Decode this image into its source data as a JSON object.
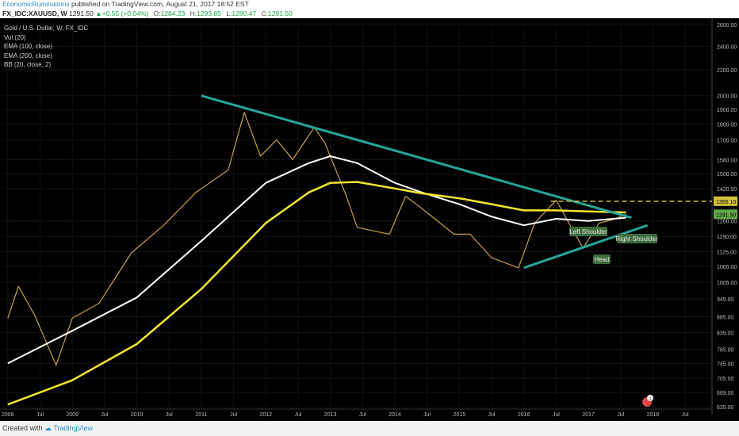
{
  "header": {
    "author": "EconomicRuminations",
    "published": " published on TradingView.com, August 21, 2017 18:52 EST"
  },
  "symbol_bar": {
    "symbol": "FX_IDC:XAUUSD, W",
    "price": "1291.50",
    "change": "▲+0.55 (+0.04%)",
    "open_label": "O:",
    "open": "1284.23",
    "high_label": "H:",
    "high": "1293.85",
    "low_label": "L:",
    "low": "1280.47",
    "close_label": "C:",
    "close": "1291.50"
  },
  "legend": {
    "title": "Gold / U.S. Dollar, W, FX_IDC",
    "items": [
      "Vol (20)",
      "EMA (100, close)",
      "EMA (200, close)",
      "BB (20, close, 2)"
    ]
  },
  "footer": {
    "created_with": "Created with",
    "brand": "TradingView"
  },
  "annotations": {
    "left_shoulder": "Left Shoulder",
    "right_shoulder": "Right Shoulder",
    "head": "Head"
  },
  "price_tags": {
    "level": "1355.10",
    "last": "1291.50"
  },
  "colors": {
    "background": "#000000",
    "trendline": "#26a69a",
    "ema100": "#ffffff",
    "ema200": "#f5e630",
    "tag_yellow": "#d4c33a",
    "tag_green": "#5fa84a"
  },
  "chart_data": {
    "type": "line",
    "title": "Gold / U.S. Dollar, W, FX_IDC",
    "scale": "log",
    "y_ticks": [
      "2600.00",
      "2400.00",
      "2200.00",
      "2000.00",
      "1900.00",
      "1800.00",
      "1700.00",
      "1580.00",
      "1500.00",
      "1420.00",
      "1355.10",
      "1291.50",
      "1260.00",
      "1190.00",
      "1125.00",
      "1065.00",
      "1005.00",
      "945.00",
      "885.00",
      "835.00",
      "785.00",
      "745.00",
      "705.00",
      "669.00",
      "635.00"
    ],
    "x_ticks": [
      "2008",
      "Jul",
      "2009",
      "Jul",
      "2010",
      "Jul",
      "2011",
      "Jul",
      "2012",
      "Jul",
      "2013",
      "Jul",
      "2014",
      "Jul",
      "2015",
      "Jul",
      "2016",
      "Jul",
      "2017",
      "Jul",
      "2018",
      "Jul"
    ],
    "ylim": [
      635,
      2600
    ],
    "xlim": [
      "2007-12",
      "2018-12"
    ],
    "series": [
      {
        "name": "XAUUSD",
        "x": [
          "2008-01",
          "2008-03",
          "2008-06",
          "2008-10",
          "2009-01",
          "2009-06",
          "2009-12",
          "2010-06",
          "2010-12",
          "2011-06",
          "2011-09",
          "2011-12",
          "2012-03",
          "2012-06",
          "2012-10",
          "2012-12",
          "2013-04",
          "2013-06",
          "2013-12",
          "2014-03",
          "2014-06",
          "2014-12",
          "2015-03",
          "2015-07",
          "2015-12",
          "2016-03",
          "2016-07",
          "2016-12",
          "2017-03",
          "2017-06",
          "2017-08"
        ],
        "y": [
          880,
          990,
          890,
          740,
          880,
          930,
          1120,
          1240,
          1400,
          1520,
          1880,
          1600,
          1700,
          1580,
          1780,
          1680,
          1380,
          1230,
          1200,
          1380,
          1320,
          1200,
          1200,
          1100,
          1060,
          1250,
          1360,
          1140,
          1250,
          1270,
          1291.5
        ]
      },
      {
        "name": "EMA (100, close)",
        "x": [
          "2008-01",
          "2009-01",
          "2010-01",
          "2011-01",
          "2012-01",
          "2012-09",
          "2013-01",
          "2013-06",
          "2014-01",
          "2014-06",
          "2015-01",
          "2015-07",
          "2016-01",
          "2016-07",
          "2017-01",
          "2017-08"
        ],
        "y": [
          745,
          840,
          950,
          1170,
          1450,
          1560,
          1600,
          1560,
          1450,
          1400,
          1340,
          1280,
          1240,
          1270,
          1260,
          1275
        ]
      },
      {
        "name": "EMA (200, close)",
        "x": [
          "2008-01",
          "2009-01",
          "2010-01",
          "2011-01",
          "2012-01",
          "2012-09",
          "2013-01",
          "2013-06",
          "2014-01",
          "2014-06",
          "2015-01",
          "2015-07",
          "2016-01",
          "2016-07",
          "2017-01",
          "2017-08"
        ],
        "y": [
          640,
          700,
          800,
          980,
          1250,
          1400,
          1450,
          1455,
          1420,
          1395,
          1370,
          1340,
          1310,
          1310,
          1305,
          1300
        ]
      }
    ],
    "trendlines": [
      {
        "name": "descending resistance",
        "x": [
          "2011-01",
          "2017-09"
        ],
        "y": [
          2000,
          1275
        ]
      },
      {
        "name": "ascending support",
        "x": [
          "2016-01",
          "2017-12"
        ],
        "y": [
          1060,
          1240
        ]
      },
      {
        "name": "resistance level",
        "x": [
          "2016-06",
          "2018-12"
        ],
        "y": [
          1355.1,
          1355.1
        ]
      }
    ]
  }
}
